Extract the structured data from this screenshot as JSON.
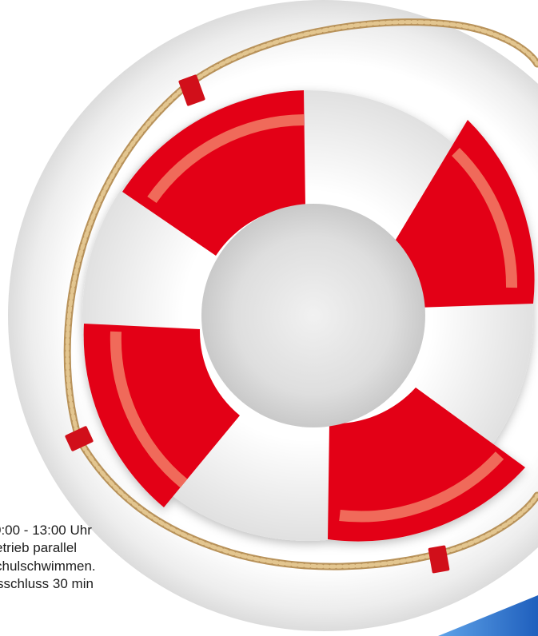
{
  "colors": {
    "ring_red": "#e30613",
    "ring_red_dark": "#c20510",
    "ring_stripe": "#f06a5a",
    "ring_white": "#ffffff",
    "inner_gray": "#d7d7d7",
    "rope": "#c9a66b",
    "background_circle": "#f2f2f2",
    "accent_blue": "#1f67c4"
  },
  "icons": {
    "life_ring": "life-ring-icon",
    "rope": "rope-icon"
  },
  "notice": {
    "lines": [
      "0:00 - 13:00 Uhr",
      "etrieb parallel",
      "chulschwimmen.",
      "sschluss  30 min"
    ]
  }
}
